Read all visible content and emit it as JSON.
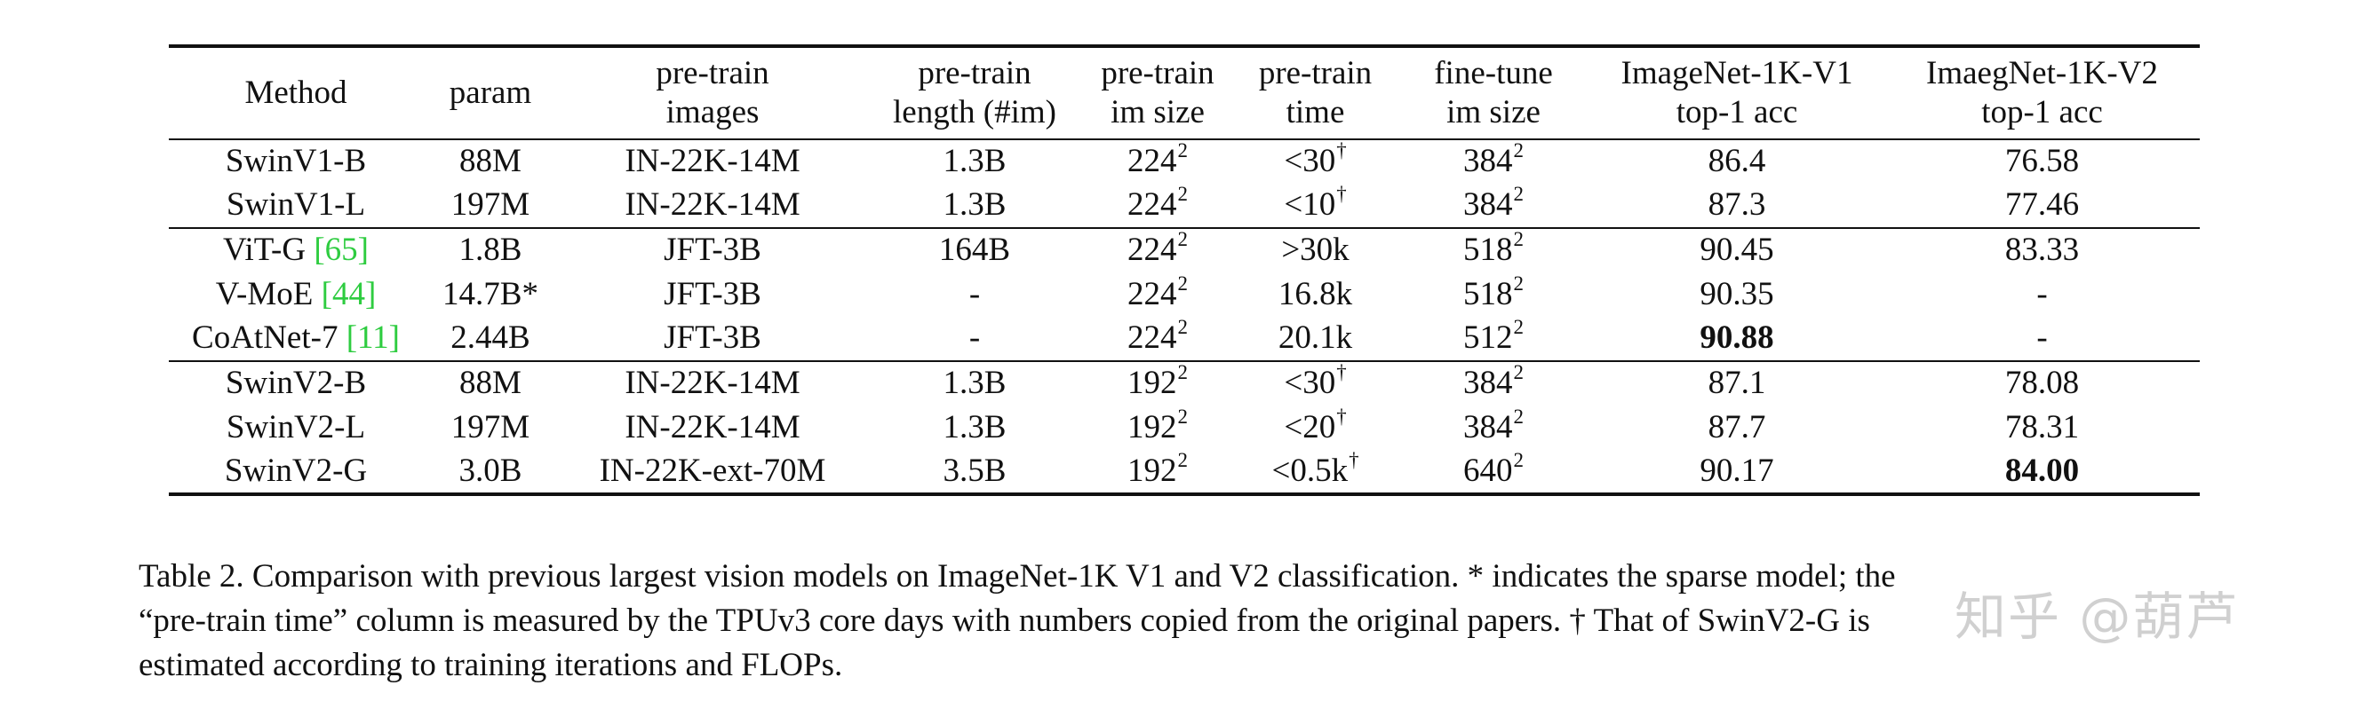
{
  "table": {
    "header": [
      {
        "lines": [
          "Method"
        ]
      },
      {
        "lines": [
          "param"
        ]
      },
      {
        "lines": [
          "pre-train",
          "images"
        ]
      },
      {
        "lines": [
          "pre-train",
          "length (#im)"
        ]
      },
      {
        "lines": [
          "pre-train",
          "im size"
        ]
      },
      {
        "lines": [
          "pre-train",
          "time"
        ]
      },
      {
        "lines": [
          "fine-tune",
          "im size"
        ]
      },
      {
        "lines": [
          "ImageNet-1K-V1",
          "top-1 acc"
        ]
      },
      {
        "lines": [
          "ImaegNet-1K-V2",
          "top-1 acc"
        ]
      }
    ],
    "groups": [
      {
        "rows": [
          {
            "method": "SwinV1-B",
            "cite": "",
            "param": "88M",
            "images": "IN-22K-14M",
            "length": "1.3B",
            "pt_size_base": "224",
            "pt_size_exp": "2",
            "pt_time": "<30",
            "pt_time_mark": "†",
            "ft_size_base": "384",
            "ft_size_exp": "2",
            "v1": "86.4",
            "v1_bold": false,
            "v2": "76.58",
            "v2_bold": false
          },
          {
            "method": "SwinV1-L",
            "cite": "",
            "param": "197M",
            "images": "IN-22K-14M",
            "length": "1.3B",
            "pt_size_base": "224",
            "pt_size_exp": "2",
            "pt_time": "<10",
            "pt_time_mark": "†",
            "ft_size_base": "384",
            "ft_size_exp": "2",
            "v1": "87.3",
            "v1_bold": false,
            "v2": "77.46",
            "v2_bold": false
          }
        ]
      },
      {
        "rows": [
          {
            "method": "ViT-G ",
            "cite": "[65]",
            "param": "1.8B",
            "images": "JFT-3B",
            "length": "164B",
            "pt_size_base": "224",
            "pt_size_exp": "2",
            "pt_time": ">30k",
            "pt_time_mark": "",
            "ft_size_base": "518",
            "ft_size_exp": "2",
            "v1": "90.45",
            "v1_bold": false,
            "v2": "83.33",
            "v2_bold": false
          },
          {
            "method": "V-MoE ",
            "cite": "[44]",
            "param": "14.7B*",
            "images": "JFT-3B",
            "length": "-",
            "pt_size_base": "224",
            "pt_size_exp": "2",
            "pt_time": "16.8k",
            "pt_time_mark": "",
            "ft_size_base": "518",
            "ft_size_exp": "2",
            "v1": "90.35",
            "v1_bold": false,
            "v2": "-",
            "v2_bold": false
          },
          {
            "method": "CoAtNet-7 ",
            "cite": "[11]",
            "param": "2.44B",
            "images": "JFT-3B",
            "length": "-",
            "pt_size_base": "224",
            "pt_size_exp": "2",
            "pt_time": "20.1k",
            "pt_time_mark": "",
            "ft_size_base": "512",
            "ft_size_exp": "2",
            "v1": "90.88",
            "v1_bold": true,
            "v2": "-",
            "v2_bold": false
          }
        ]
      },
      {
        "rows": [
          {
            "method": "SwinV2-B",
            "cite": "",
            "param": "88M",
            "images": "IN-22K-14M",
            "length": "1.3B",
            "pt_size_base": "192",
            "pt_size_exp": "2",
            "pt_time": "<30",
            "pt_time_mark": "†",
            "ft_size_base": "384",
            "ft_size_exp": "2",
            "v1": "87.1",
            "v1_bold": false,
            "v2": "78.08",
            "v2_bold": false
          },
          {
            "method": "SwinV2-L",
            "cite": "",
            "param": "197M",
            "images": "IN-22K-14M",
            "length": "1.3B",
            "pt_size_base": "192",
            "pt_size_exp": "2",
            "pt_time": "<20",
            "pt_time_mark": "†",
            "ft_size_base": "384",
            "ft_size_exp": "2",
            "v1": "87.7",
            "v1_bold": false,
            "v2": "78.31",
            "v2_bold": false
          },
          {
            "method": "SwinV2-G",
            "cite": "",
            "param": "3.0B",
            "images": "IN-22K-ext-70M",
            "length": "3.5B",
            "pt_size_base": "192",
            "pt_size_exp": "2",
            "pt_time": "<0.5k",
            "pt_time_mark": "†",
            "ft_size_base": "640",
            "ft_size_exp": "2",
            "v1": "90.17",
            "v1_bold": false,
            "v2": "84.00",
            "v2_bold": true
          }
        ]
      }
    ]
  },
  "caption": {
    "lines": [
      "Table 2.  Comparison with previous largest vision models on ImageNet-1K V1 and V2 classification.  * indicates the sparse model; the",
      "“pre-train time” column is measured by the TPUv3 core days with numbers copied from the original papers.  † That of SwinV2-G is",
      "estimated according to training iterations and FLOPs."
    ]
  },
  "watermark": {
    "text": "知乎 @葫芦"
  },
  "colors": {
    "citation": "#2ecc40",
    "rule": "#111111",
    "text": "#111111"
  }
}
